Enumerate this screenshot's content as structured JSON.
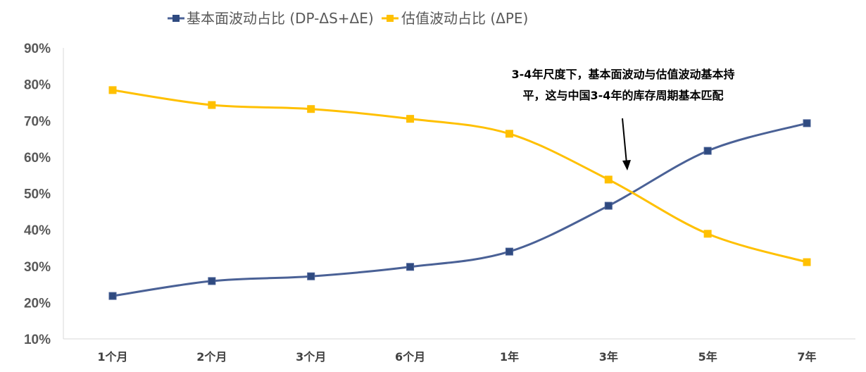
{
  "chart_data": {
    "type": "line",
    "categories": [
      "1个月",
      "2个月",
      "3个月",
      "6个月",
      "1年",
      "3年",
      "5年",
      "7年"
    ],
    "series": [
      {
        "name": "基本面波动占比 (DP-ΔS+ΔE)",
        "color": "#4A6196",
        "marker_color": "#2F4A80",
        "values": [
          21.8,
          25.9,
          27.2,
          29.8,
          34.0,
          46.6,
          61.7,
          69.3
        ]
      },
      {
        "name": "估值波动占比 (ΔPE)",
        "color": "#FFC000",
        "marker_color": "#FFC000",
        "values": [
          78.4,
          74.3,
          73.2,
          70.5,
          66.4,
          53.8,
          38.9,
          31.1
        ]
      }
    ],
    "ylim": [
      10,
      90
    ],
    "yticks": [
      "10%",
      "20%",
      "30%",
      "40%",
      "50%",
      "60%",
      "70%",
      "80%",
      "90%"
    ],
    "grid": false,
    "legend": "top",
    "annotation": {
      "lines": [
        "3-4年尺度下，基本面波动与估值波动基本持",
        "平，这与中国3-4年的库存周期基本匹配"
      ],
      "arrow": "pointing to crossover near 3年"
    }
  }
}
